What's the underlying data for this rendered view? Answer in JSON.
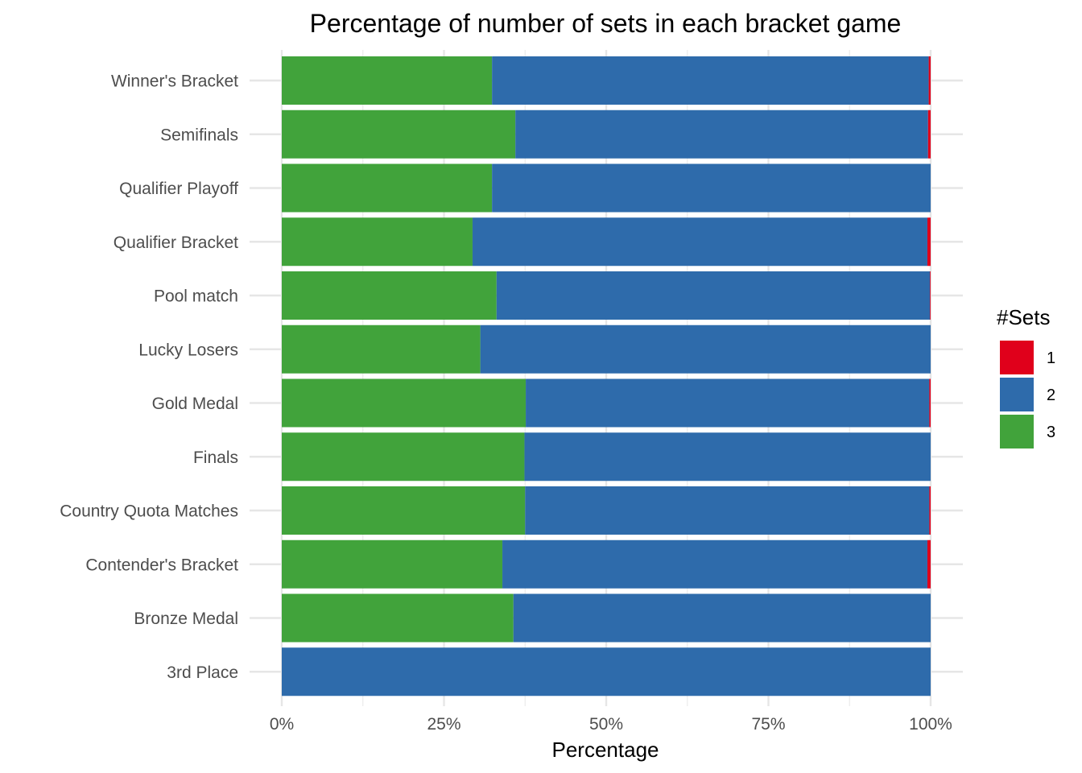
{
  "chart_data": {
    "type": "bar",
    "orientation": "horizontal",
    "stacked": "percent",
    "title": "Percentage of number of sets in each bracket game",
    "xlabel": "Percentage",
    "ylabel": "",
    "xlim": [
      0,
      100
    ],
    "x_ticks": [
      0,
      25,
      50,
      75,
      100
    ],
    "x_tick_labels": [
      "0%",
      "25%",
      "50%",
      "75%",
      "100%"
    ],
    "grid": true,
    "categories": [
      "Winner's Bracket",
      "Semifinals",
      "Qualifier Playoff",
      "Qualifier Bracket",
      "Pool match",
      "Lucky Losers",
      "Gold Medal",
      "Finals",
      "Country Quota Matches",
      "Contender's Bracket",
      "Bronze Medal",
      "3rd Place"
    ],
    "series": [
      {
        "name": "3",
        "color": "#41a33b",
        "values": [
          32.4,
          36.0,
          32.4,
          29.4,
          33.1,
          30.6,
          37.6,
          37.4,
          37.5,
          34.0,
          35.7,
          0
        ]
      },
      {
        "name": "2",
        "color": "#2e6bab",
        "values": [
          67.3,
          63.6,
          67.6,
          70.1,
          66.8,
          69.4,
          62.2,
          62.6,
          62.3,
          65.5,
          64.3,
          100
        ]
      },
      {
        "name": "1",
        "color": "#e0001b",
        "values": [
          0.3,
          0.4,
          0,
          0.5,
          0.1,
          0,
          0.2,
          0,
          0.2,
          0.5,
          0,
          0
        ]
      }
    ],
    "legend": {
      "title": "#Sets",
      "position": "right",
      "items": [
        {
          "label": "1",
          "color": "#e0001b"
        },
        {
          "label": "2",
          "color": "#2e6bab"
        },
        {
          "label": "3",
          "color": "#41a33b"
        }
      ]
    }
  }
}
